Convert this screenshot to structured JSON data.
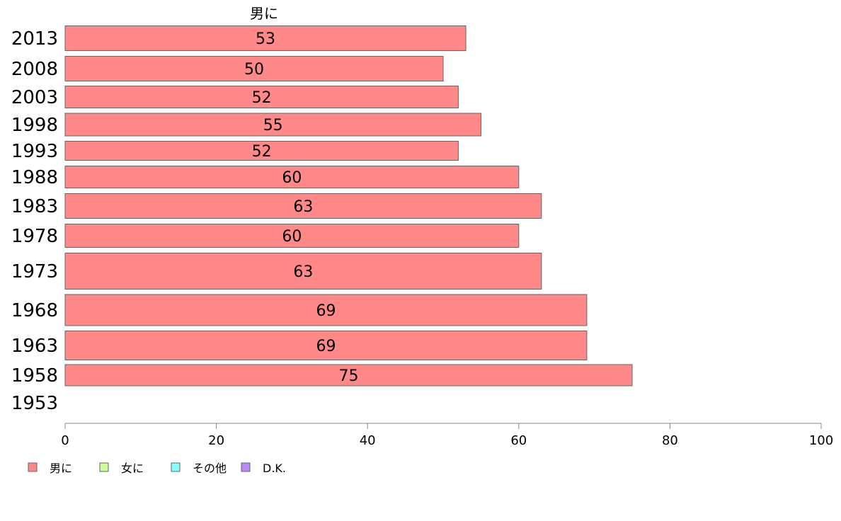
{
  "chart_data": {
    "type": "bar",
    "orientation": "horizontal",
    "series_header": "男に",
    "categories": [
      "2013",
      "2008",
      "2003",
      "1998",
      "1993",
      "1988",
      "1983",
      "1978",
      "1973",
      "1968",
      "1963",
      "1958",
      "1953"
    ],
    "series": [
      {
        "name": "男に",
        "color": "#ff8888",
        "values": [
          53,
          50,
          52,
          55,
          52,
          60,
          63,
          60,
          63,
          69,
          69,
          75,
          null
        ]
      }
    ],
    "value_labels": [
      "53",
      "50",
      "52",
      "55",
      "52",
      "60",
      "63",
      "60",
      "63",
      "69",
      "69",
      "75",
      ""
    ],
    "xlim": [
      0,
      100
    ],
    "xticks": [
      0,
      20,
      40,
      60,
      80,
      100
    ],
    "legend": {
      "placement": "bottom-left",
      "items": [
        {
          "label": "男に",
          "color": "#ff8888"
        },
        {
          "label": "女に",
          "color": "#ccff99"
        },
        {
          "label": "その他",
          "color": "#88ffff"
        },
        {
          "label": "D.K.",
          "color": "#bb88ff"
        }
      ]
    },
    "grid": false
  }
}
